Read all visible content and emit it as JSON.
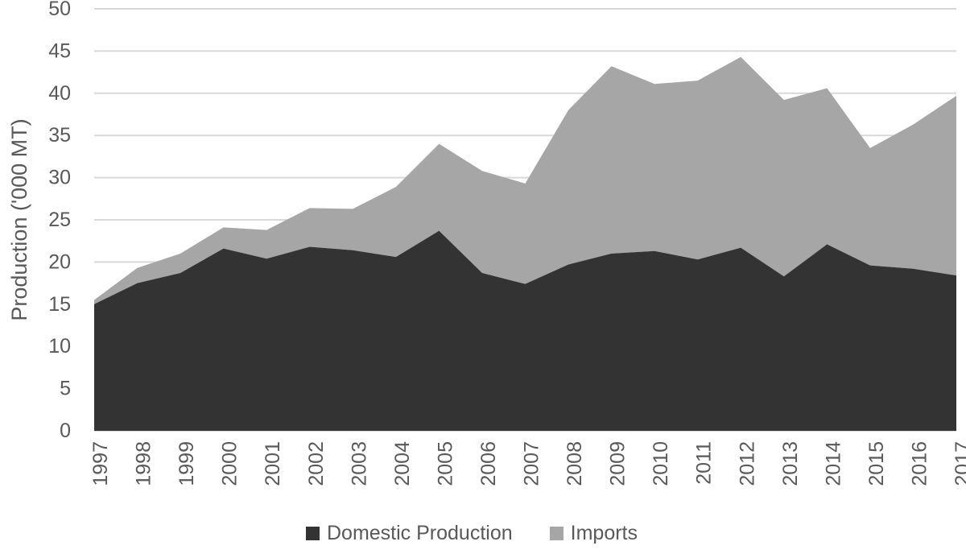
{
  "chart_data": {
    "type": "area",
    "stacked": true,
    "title": "",
    "xlabel": "",
    "ylabel": "Production ('000 MT)",
    "ylim": [
      0,
      50
    ],
    "yticks": [
      0,
      5,
      10,
      15,
      20,
      25,
      30,
      35,
      40,
      45,
      50
    ],
    "grid": true,
    "legend_position": "bottom",
    "categories": [
      "1997",
      "1998",
      "1999",
      "2000",
      "2001",
      "2002",
      "2003",
      "2004",
      "2005",
      "2006",
      "2007",
      "2008",
      "2009",
      "2010",
      "2011",
      "2012",
      "2013",
      "2014",
      "2015",
      "2016",
      "2017"
    ],
    "series": [
      {
        "name": "Domestic Production",
        "color": "#333333",
        "values": [
          15.0,
          17.5,
          18.7,
          21.6,
          20.4,
          21.8,
          21.4,
          20.6,
          23.7,
          18.7,
          17.4,
          19.7,
          21.0,
          21.3,
          20.3,
          21.7,
          18.3,
          22.1,
          19.6,
          19.2,
          18.4
        ]
      },
      {
        "name": "Imports",
        "color": "#a6a6a6",
        "values": [
          0.5,
          1.8,
          2.3,
          2.5,
          3.4,
          4.6,
          4.9,
          8.3,
          10.3,
          12.1,
          11.9,
          18.3,
          22.2,
          19.8,
          21.2,
          22.6,
          20.9,
          18.5,
          13.9,
          17.1,
          21.3
        ]
      }
    ],
    "colors": {
      "gridline": "#d9d9d9",
      "axis_text": "#595959"
    }
  }
}
